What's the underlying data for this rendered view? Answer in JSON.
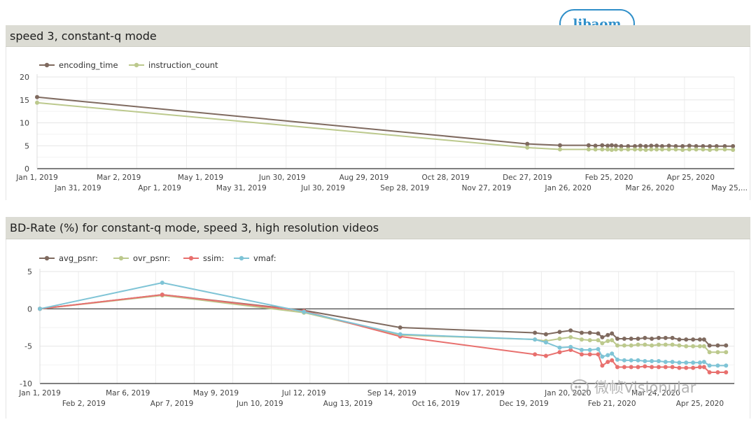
{
  "chart_data": [
    {
      "type": "line",
      "title": "speed 3, constant-q mode",
      "ylim": [
        0,
        20
      ],
      "yticks": [
        "0",
        "5",
        "10",
        "15",
        "20"
      ],
      "xlim": [
        "2019-01-01",
        "2020-05-27"
      ],
      "xticks_upper": [
        {
          "label": "Jan 1, 2019",
          "date": "2019-01-01"
        },
        {
          "label": "Mar 2, 2019",
          "date": "2019-03-02"
        },
        {
          "label": "May 1, 2019",
          "date": "2019-05-01"
        },
        {
          "label": "Jun 30, 2019",
          "date": "2019-06-30"
        },
        {
          "label": "Aug 29, 2019",
          "date": "2019-08-29"
        },
        {
          "label": "Oct 28, 2019",
          "date": "2019-10-28"
        },
        {
          "label": "Dec 27, 2019",
          "date": "2019-12-27"
        },
        {
          "label": "Feb 25, 2020",
          "date": "2020-02-25"
        },
        {
          "label": "Apr 25, 2020",
          "date": "2020-04-25"
        }
      ],
      "xticks_lower": [
        {
          "label": "Jan 31, 2019",
          "date": "2019-01-31"
        },
        {
          "label": "Apr 1, 2019",
          "date": "2019-04-01"
        },
        {
          "label": "May 31, 2019",
          "date": "2019-05-31"
        },
        {
          "label": "Jul 30, 2019",
          "date": "2019-07-30"
        },
        {
          "label": "Sep 28, 2019",
          "date": "2019-09-28"
        },
        {
          "label": "Nov 27, 2019",
          "date": "2019-11-27"
        },
        {
          "label": "Jan 26, 2020",
          "date": "2020-01-26"
        },
        {
          "label": "Mar 26, 2020",
          "date": "2020-03-26"
        },
        {
          "label": "May 25,...",
          "date": "2020-05-25"
        }
      ],
      "series": [
        {
          "name": "encoding_time",
          "color": "#7f6a5f",
          "points": [
            [
              "2019-01-01",
              15.6
            ],
            [
              "2019-12-27",
              5.4
            ],
            [
              "2020-01-20",
              5.1
            ],
            [
              "2020-02-10",
              5.1
            ],
            [
              "2020-02-15",
              5.0
            ],
            [
              "2020-02-20",
              5.1
            ],
            [
              "2020-02-24",
              5.0
            ],
            [
              "2020-02-27",
              5.1
            ],
            [
              "2020-03-01",
              5.0
            ],
            [
              "2020-03-05",
              4.9
            ],
            [
              "2020-03-10",
              4.9
            ],
            [
              "2020-03-15",
              4.9
            ],
            [
              "2020-03-19",
              5.0
            ],
            [
              "2020-03-23",
              4.9
            ],
            [
              "2020-03-27",
              5.0
            ],
            [
              "2020-03-31",
              5.0
            ],
            [
              "2020-04-04",
              4.9
            ],
            [
              "2020-04-09",
              5.0
            ],
            [
              "2020-04-14",
              4.9
            ],
            [
              "2020-04-19",
              4.9
            ],
            [
              "2020-04-24",
              5.0
            ],
            [
              "2020-04-29",
              4.9
            ],
            [
              "2020-05-04",
              4.9
            ],
            [
              "2020-05-09",
              4.9
            ],
            [
              "2020-05-14",
              4.9
            ],
            [
              "2020-05-20",
              4.9
            ],
            [
              "2020-05-26",
              4.9
            ]
          ]
        },
        {
          "name": "instruction_count",
          "color": "#bcc98d",
          "points": [
            [
              "2019-01-01",
              14.4
            ],
            [
              "2019-12-27",
              4.6
            ],
            [
              "2020-01-20",
              4.2
            ],
            [
              "2020-02-10",
              4.2
            ],
            [
              "2020-02-15",
              4.2
            ],
            [
              "2020-02-20",
              4.2
            ],
            [
              "2020-02-24",
              4.2
            ],
            [
              "2020-02-27",
              4.1
            ],
            [
              "2020-03-01",
              4.2
            ],
            [
              "2020-03-05",
              4.2
            ],
            [
              "2020-03-10",
              4.2
            ],
            [
              "2020-03-15",
              4.2
            ],
            [
              "2020-03-19",
              4.2
            ],
            [
              "2020-03-23",
              4.1
            ],
            [
              "2020-03-27",
              4.2
            ],
            [
              "2020-03-31",
              4.2
            ],
            [
              "2020-04-04",
              4.2
            ],
            [
              "2020-04-09",
              4.2
            ],
            [
              "2020-04-14",
              4.2
            ],
            [
              "2020-04-19",
              4.1
            ],
            [
              "2020-04-24",
              4.2
            ],
            [
              "2020-04-29",
              4.2
            ],
            [
              "2020-05-04",
              4.2
            ],
            [
              "2020-05-09",
              4.1
            ],
            [
              "2020-05-14",
              4.2
            ],
            [
              "2020-05-20",
              4.2
            ],
            [
              "2020-05-26",
              4.1
            ]
          ]
        }
      ]
    },
    {
      "type": "line",
      "title": "BD-Rate (%) for constant-q mode, speed 3, high resolution videos",
      "ylim": [
        -10,
        5
      ],
      "yticks": [
        "5",
        "0",
        "-5",
        "-10"
      ],
      "xlim": [
        "2019-01-01",
        "2020-05-20"
      ],
      "xticks_upper": [
        {
          "label": "Jan 1, 2019",
          "date": "2019-01-01"
        },
        {
          "label": "Mar 6, 2019",
          "date": "2019-03-06"
        },
        {
          "label": "May 9, 2019",
          "date": "2019-05-09"
        },
        {
          "label": "Jul 12, 2019",
          "date": "2019-07-12"
        },
        {
          "label": "Sep 14, 2019",
          "date": "2019-09-14"
        },
        {
          "label": "Nov 17, 2019",
          "date": "2019-11-17"
        },
        {
          "label": "Jan 20, 2020",
          "date": "2020-01-20"
        },
        {
          "label": "Mar 24, 2020",
          "date": "2020-03-24"
        }
      ],
      "xticks_lower": [
        {
          "label": "Feb 2, 2019",
          "date": "2019-02-02"
        },
        {
          "label": "Apr 7, 2019",
          "date": "2019-04-07"
        },
        {
          "label": "Jun 10, 2019",
          "date": "2019-06-10"
        },
        {
          "label": "Aug 13, 2019",
          "date": "2019-08-13"
        },
        {
          "label": "Oct 16, 2019",
          "date": "2019-10-16"
        },
        {
          "label": "Dec 19, 2019",
          "date": "2019-12-19"
        },
        {
          "label": "Feb 21, 2020",
          "date": "2020-02-21"
        },
        {
          "label": "Apr 25, 2020",
          "date": "2020-04-25"
        }
      ],
      "series": [
        {
          "name": "avg_psnr:",
          "color": "#7f6a5f",
          "points": [
            [
              "2019-01-01",
              0
            ],
            [
              "2019-03-31",
              1.9
            ],
            [
              "2019-07-12",
              -0.2
            ],
            [
              "2019-09-20",
              -2.5
            ],
            [
              "2019-12-27",
              -3.2
            ],
            [
              "2020-01-04",
              -3.4
            ],
            [
              "2020-01-14",
              -3.1
            ],
            [
              "2020-01-22",
              -2.9
            ],
            [
              "2020-01-30",
              -3.2
            ],
            [
              "2020-02-05",
              -3.2
            ],
            [
              "2020-02-11",
              -3.3
            ],
            [
              "2020-02-14",
              -3.8
            ],
            [
              "2020-02-18",
              -3.5
            ],
            [
              "2020-02-21",
              -3.3
            ],
            [
              "2020-02-25",
              -4.0
            ],
            [
              "2020-03-01",
              -4.0
            ],
            [
              "2020-03-06",
              -4.0
            ],
            [
              "2020-03-11",
              -4.0
            ],
            [
              "2020-03-16",
              -3.9
            ],
            [
              "2020-03-21",
              -4.0
            ],
            [
              "2020-03-26",
              -3.9
            ],
            [
              "2020-03-31",
              -3.9
            ],
            [
              "2020-04-05",
              -3.9
            ],
            [
              "2020-04-10",
              -4.1
            ],
            [
              "2020-04-15",
              -4.1
            ],
            [
              "2020-04-20",
              -4.1
            ],
            [
              "2020-04-25",
              -4.1
            ],
            [
              "2020-04-28",
              -4.1
            ],
            [
              "2020-05-02",
              -4.9
            ],
            [
              "2020-05-08",
              -4.9
            ],
            [
              "2020-05-14",
              -4.9
            ]
          ]
        },
        {
          "name": "ovr_psnr:",
          "color": "#bcc98d",
          "points": [
            [
              "2019-01-01",
              0
            ],
            [
              "2019-03-31",
              1.8
            ],
            [
              "2019-07-12",
              -0.5
            ],
            [
              "2019-09-20",
              -3.5
            ],
            [
              "2019-12-27",
              -4.1
            ],
            [
              "2020-01-04",
              -4.3
            ],
            [
              "2020-01-14",
              -4.0
            ],
            [
              "2020-01-22",
              -3.8
            ],
            [
              "2020-01-30",
              -4.1
            ],
            [
              "2020-02-05",
              -4.2
            ],
            [
              "2020-02-11",
              -4.2
            ],
            [
              "2020-02-14",
              -4.6
            ],
            [
              "2020-02-18",
              -4.3
            ],
            [
              "2020-02-21",
              -4.2
            ],
            [
              "2020-02-25",
              -4.9
            ],
            [
              "2020-03-01",
              -4.9
            ],
            [
              "2020-03-06",
              -4.9
            ],
            [
              "2020-03-11",
              -4.8
            ],
            [
              "2020-03-16",
              -4.8
            ],
            [
              "2020-03-21",
              -4.9
            ],
            [
              "2020-03-26",
              -4.8
            ],
            [
              "2020-03-31",
              -4.8
            ],
            [
              "2020-04-05",
              -4.8
            ],
            [
              "2020-04-10",
              -4.9
            ],
            [
              "2020-04-15",
              -5.0
            ],
            [
              "2020-04-20",
              -5.0
            ],
            [
              "2020-04-25",
              -5.0
            ],
            [
              "2020-04-28",
              -5.0
            ],
            [
              "2020-05-02",
              -5.8
            ],
            [
              "2020-05-08",
              -5.8
            ],
            [
              "2020-05-14",
              -5.8
            ]
          ]
        },
        {
          "name": "ssim:",
          "color": "#e8706e",
          "points": [
            [
              "2019-01-01",
              0
            ],
            [
              "2019-03-31",
              1.9
            ],
            [
              "2019-07-12",
              -0.3
            ],
            [
              "2019-09-20",
              -3.7
            ],
            [
              "2019-12-27",
              -6.1
            ],
            [
              "2020-01-04",
              -6.3
            ],
            [
              "2020-01-14",
              -5.8
            ],
            [
              "2020-01-22",
              -5.5
            ],
            [
              "2020-01-30",
              -6.1
            ],
            [
              "2020-02-05",
              -6.1
            ],
            [
              "2020-02-11",
              -6.1
            ],
            [
              "2020-02-14",
              -7.6
            ],
            [
              "2020-02-18",
              -7.1
            ],
            [
              "2020-02-21",
              -6.9
            ],
            [
              "2020-02-25",
              -7.8
            ],
            [
              "2020-03-01",
              -7.8
            ],
            [
              "2020-03-06",
              -7.8
            ],
            [
              "2020-03-11",
              -7.8
            ],
            [
              "2020-03-16",
              -7.7
            ],
            [
              "2020-03-21",
              -7.8
            ],
            [
              "2020-03-26",
              -7.8
            ],
            [
              "2020-03-31",
              -7.8
            ],
            [
              "2020-04-05",
              -7.8
            ],
            [
              "2020-04-10",
              -7.9
            ],
            [
              "2020-04-15",
              -7.9
            ],
            [
              "2020-04-20",
              -7.9
            ],
            [
              "2020-04-25",
              -7.8
            ],
            [
              "2020-04-28",
              -7.8
            ],
            [
              "2020-05-02",
              -8.5
            ],
            [
              "2020-05-08",
              -8.5
            ],
            [
              "2020-05-14",
              -8.5
            ]
          ]
        },
        {
          "name": "vmaf:",
          "color": "#7fc4d6",
          "points": [
            [
              "2019-01-01",
              0
            ],
            [
              "2019-03-31",
              3.5
            ],
            [
              "2019-07-12",
              -0.4
            ],
            [
              "2019-09-20",
              -3.4
            ],
            [
              "2019-12-27",
              -4.1
            ],
            [
              "2020-01-04",
              -4.5
            ],
            [
              "2020-01-14",
              -5.2
            ],
            [
              "2020-01-22",
              -5.1
            ],
            [
              "2020-01-30",
              -5.5
            ],
            [
              "2020-02-05",
              -5.5
            ],
            [
              "2020-02-11",
              -5.4
            ],
            [
              "2020-02-14",
              -6.4
            ],
            [
              "2020-02-18",
              -6.2
            ],
            [
              "2020-02-21",
              -6.0
            ],
            [
              "2020-02-25",
              -6.8
            ],
            [
              "2020-03-01",
              -6.9
            ],
            [
              "2020-03-06",
              -6.9
            ],
            [
              "2020-03-11",
              -6.9
            ],
            [
              "2020-03-16",
              -7.0
            ],
            [
              "2020-03-21",
              -7.0
            ],
            [
              "2020-03-26",
              -7.0
            ],
            [
              "2020-03-31",
              -7.1
            ],
            [
              "2020-04-05",
              -7.1
            ],
            [
              "2020-04-10",
              -7.2
            ],
            [
              "2020-04-15",
              -7.2
            ],
            [
              "2020-04-20",
              -7.2
            ],
            [
              "2020-04-25",
              -7.2
            ],
            [
              "2020-04-28",
              -7.1
            ],
            [
              "2020-05-02",
              -7.6
            ],
            [
              "2020-05-08",
              -7.6
            ],
            [
              "2020-05-14",
              -7.6
            ]
          ]
        }
      ]
    }
  ],
  "badge": {
    "label": "libaom"
  },
  "watermark": {
    "text": "微帧Visionular"
  }
}
